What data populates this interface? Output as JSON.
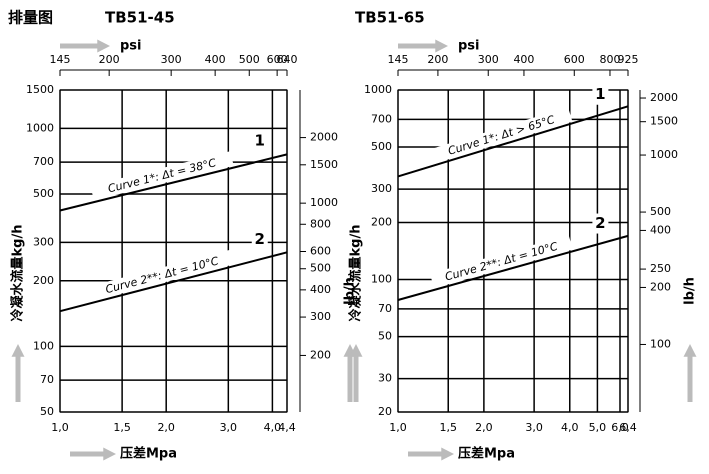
{
  "title": "排量图",
  "chart_data": [
    {
      "type": "line",
      "title": "TB51-45",
      "log_x": true,
      "log_y": true,
      "grid": true,
      "xlabel": "压差Mpa",
      "x2label": "psi",
      "ylabel": "冷凝水流量kg/h",
      "y2label": "lb/h",
      "xlim": [
        1.0,
        4.4
      ],
      "xticks": [
        {
          "value": 1.0,
          "label": "1,0"
        },
        {
          "value": 1.5,
          "label": "1,5"
        },
        {
          "value": 2.0,
          "label": "2,0"
        },
        {
          "value": 3.0,
          "label": "3,0"
        },
        {
          "value": 4.0,
          "label": "4,0"
        },
        {
          "value": 4.4,
          "label": "4,4"
        }
      ],
      "x2lim": [
        145,
        640
      ],
      "x2ticks": [
        145,
        200,
        300,
        400,
        500,
        600,
        640
      ],
      "ylim": [
        50,
        1500
      ],
      "yticks": [
        50,
        70,
        100,
        200,
        300,
        500,
        700,
        1000,
        1500
      ],
      "y2lim": [
        110,
        3307
      ],
      "y2ticks": [
        200,
        300,
        400,
        500,
        600,
        800,
        1000,
        1500,
        2000
      ],
      "series": [
        {
          "name": "Curve 1*: Δt = 38°C",
          "label": "1",
          "color": "#000000",
          "x": [
            1.0,
            4.4
          ],
          "values": [
            420,
            760
          ]
        },
        {
          "name": "Curve 2**: Δt = 10°C",
          "label": "2",
          "color": "#000000",
          "x": [
            1.0,
            4.4
          ],
          "values": [
            145,
            270
          ]
        }
      ]
    },
    {
      "type": "line",
      "title": "TB51-65",
      "log_x": true,
      "log_y": true,
      "grid": true,
      "xlabel": "压差Mpa",
      "x2label": "psi",
      "ylabel": "冷凝水流量kg/h",
      "y2label": "lb/h",
      "xlim": [
        1.0,
        6.4
      ],
      "xticks": [
        {
          "value": 1.0,
          "label": "1,0"
        },
        {
          "value": 1.5,
          "label": "1,5"
        },
        {
          "value": 2.0,
          "label": "2,0"
        },
        {
          "value": 3.0,
          "label": "3,0"
        },
        {
          "value": 4.0,
          "label": "4,0"
        },
        {
          "value": 5.0,
          "label": "5,0"
        },
        {
          "value": 6.0,
          "label": "6,0"
        },
        {
          "value": 6.4,
          "label": "6,4"
        }
      ],
      "x2lim": [
        145,
        925
      ],
      "x2ticks": [
        145,
        200,
        300,
        400,
        600,
        800,
        925
      ],
      "ylim": [
        20,
        1000
      ],
      "yticks": [
        20,
        30,
        50,
        70,
        100,
        200,
        300,
        500,
        700,
        1000
      ],
      "y2lim": [
        44,
        2205
      ],
      "y2ticks": [
        100,
        200,
        250,
        400,
        500,
        1000,
        1500,
        2000
      ],
      "series": [
        {
          "name": "Curve 1*: Δt > 65°C",
          "label": "1",
          "color": "#000000",
          "x": [
            1.0,
            6.4
          ],
          "values": [
            350,
            820
          ]
        },
        {
          "name": "Curve 2**: Δt = 10°C",
          "label": "2",
          "color": "#000000",
          "x": [
            1.0,
            6.4
          ],
          "values": [
            78,
            170
          ]
        }
      ]
    }
  ]
}
